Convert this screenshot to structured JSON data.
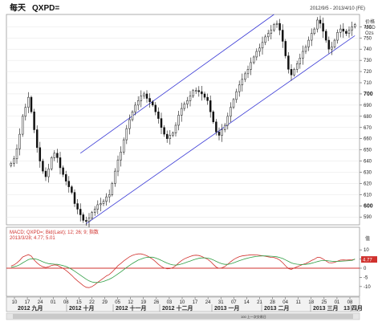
{
  "header": {
    "period": "每天",
    "symbol": "QXPD=",
    "date_range": "2012/9/5 - 2013/4/10 (FE)"
  },
  "price_axis": {
    "label_lines": [
      "价格",
      "USD",
      "Ozs"
    ]
  },
  "macd_header": {
    "line1": "MACD; QXPD=; Bid(Last); 12; 26; 9; 指数",
    "line2": "2013/3/28; 4.77; 5.01"
  },
  "macd_axis": {
    "label": "值",
    "badge_value": "4.77",
    "badge_color": "#d0312d",
    "ticks": [
      "10",
      "5",
      "0",
      "-5",
      "-10"
    ]
  },
  "bottom_bar": {
    "text": "100   上一次交易日"
  },
  "chart_data": [
    {
      "type": "candlestick",
      "title": "",
      "ylabel": "USD Ozs",
      "ylim": [
        583,
        771
      ],
      "yticks": [
        590,
        600,
        610,
        620,
        630,
        640,
        650,
        660,
        670,
        680,
        690,
        700,
        710,
        720,
        730,
        740,
        750,
        760
      ],
      "major_yticks": [
        600,
        700
      ],
      "x_day_labels": [
        "10",
        "17",
        "24",
        "01",
        "08",
        "15",
        "22",
        "29",
        "05",
        "12",
        "19",
        "26",
        "03",
        "10",
        "17",
        "24",
        "31",
        "07",
        "14",
        "21",
        "28",
        "04",
        "11",
        "18",
        "25",
        "01",
        "08"
      ],
      "month_labels": [
        "2012 九月",
        "2012 十月",
        "2012 十一月",
        "2012 十二月",
        "2013 一月",
        "2013 二月",
        "2013 三月",
        "13 四月"
      ],
      "close": [
        638,
        642,
        651,
        664,
        680,
        688,
        697,
        684,
        668,
        652,
        640,
        631,
        626,
        633,
        643,
        647,
        643,
        634,
        628,
        622,
        617,
        612,
        602,
        597,
        592,
        587,
        586,
        589,
        594,
        597,
        601,
        602,
        604,
        608,
        610,
        620,
        631,
        641,
        648,
        659,
        669,
        677,
        684,
        690,
        694,
        698,
        700,
        696,
        693,
        690,
        684,
        678,
        670,
        664,
        660,
        663,
        665,
        672,
        681,
        687,
        691,
        694,
        698,
        703,
        703,
        702,
        700,
        697,
        694,
        684,
        675,
        666,
        663,
        668,
        672,
        680,
        688,
        695,
        702,
        708,
        713,
        718,
        722,
        728,
        733,
        738,
        741,
        746,
        751,
        754,
        757,
        762,
        763,
        757,
        747,
        734,
        722,
        717,
        722,
        727,
        732,
        738,
        742,
        748,
        754,
        758,
        766,
        763,
        756,
        748,
        740,
        742,
        748,
        755,
        758,
        756,
        754,
        757,
        760,
        762
      ]
    },
    {
      "type": "line",
      "title": "",
      "ylim": [
        -14,
        14
      ],
      "series": [
        {
          "name": "MACD",
          "color": "#d0312d",
          "values": [
            1.2,
            1.8,
            2.9,
            4.3,
            6.1,
            6.8,
            7.4,
            6.6,
            4.4,
            2.9,
            1.6,
            0.8,
            0.4,
            0.8,
            1.5,
            1.8,
            1.6,
            0.7,
            -0.1,
            -1.2,
            -2.5,
            -3.9,
            -5.5,
            -6.9,
            -8.2,
            -9.5,
            -10.4,
            -10.6,
            -10.0,
            -9.0,
            -7.7,
            -6.5,
            -5.4,
            -4.2,
            -3.4,
            -2.0,
            -0.4,
            1.4,
            2.6,
            4.0,
            5.1,
            6.2,
            7.0,
            7.5,
            7.8,
            7.8,
            7.4,
            6.8,
            5.9,
            4.9,
            3.6,
            2.1,
            0.9,
            0.1,
            -0.3,
            -0.2,
            0.3,
            1.4,
            2.9,
            4.1,
            5.1,
            5.8,
            6.4,
            6.9,
            7.1,
            6.9,
            6.4,
            5.6,
            4.9,
            3.7,
            2.1,
            0.6,
            -0.1,
            0.2,
            0.9,
            2.2,
            3.5,
            4.7,
            5.6,
            6.3,
            6.7,
            6.9,
            7.1,
            7.3,
            7.3,
            7.2,
            7.0,
            6.8,
            6.5,
            6.2,
            5.9,
            5.8,
            5.3,
            4.4,
            3.0,
            1.3,
            -0.2,
            -0.6,
            0.1,
            0.8,
            1.4,
            2.1,
            2.6,
            3.3,
            4.2,
            4.9,
            5.9,
            5.8,
            5.0,
            4.0,
            3.0,
            2.9,
            3.2,
            3.8,
            4.4,
            4.5,
            4.4,
            4.5,
            4.6,
            4.77
          ]
        },
        {
          "name": "Signal",
          "color": "#2f9e44",
          "values": [
            0.5,
            0.8,
            1.2,
            1.9,
            2.9,
            3.8,
            4.7,
            5.1,
            5.1,
            4.8,
            4.2,
            3.5,
            2.9,
            2.5,
            2.3,
            2.2,
            2.1,
            1.8,
            1.4,
            0.9,
            0.2,
            -0.6,
            -1.6,
            -2.7,
            -3.8,
            -4.9,
            -6.0,
            -6.9,
            -7.5,
            -7.8,
            -7.8,
            -7.6,
            -7.2,
            -6.6,
            -6.0,
            -5.2,
            -4.2,
            -3.1,
            -2.0,
            -0.8,
            0.4,
            1.5,
            2.6,
            3.5,
            4.4,
            5.0,
            5.6,
            5.9,
            6.0,
            6.0,
            5.6,
            5.0,
            4.3,
            3.5,
            2.8,
            2.2,
            1.8,
            1.7,
            1.9,
            2.3,
            2.8,
            3.4,
            3.9,
            4.5,
            5.0,
            5.4,
            5.6,
            5.6,
            5.5,
            5.1,
            4.5,
            3.7,
            3.0,
            2.4,
            2.1,
            2.1,
            2.4,
            2.9,
            3.5,
            4.1,
            4.6,
            5.1,
            5.5,
            5.9,
            6.2,
            6.4,
            6.6,
            6.7,
            6.7,
            6.6,
            6.5,
            6.4,
            6.2,
            5.8,
            5.3,
            4.5,
            3.7,
            2.9,
            2.4,
            2.2,
            2.0,
            2.0,
            2.1,
            2.3,
            2.7,
            3.1,
            3.6,
            4.0,
            4.2,
            4.2,
            4.0,
            3.8,
            3.7,
            3.7,
            3.8,
            3.9,
            4.0,
            4.1,
            4.2,
            5.01
          ]
        }
      ]
    }
  ]
}
